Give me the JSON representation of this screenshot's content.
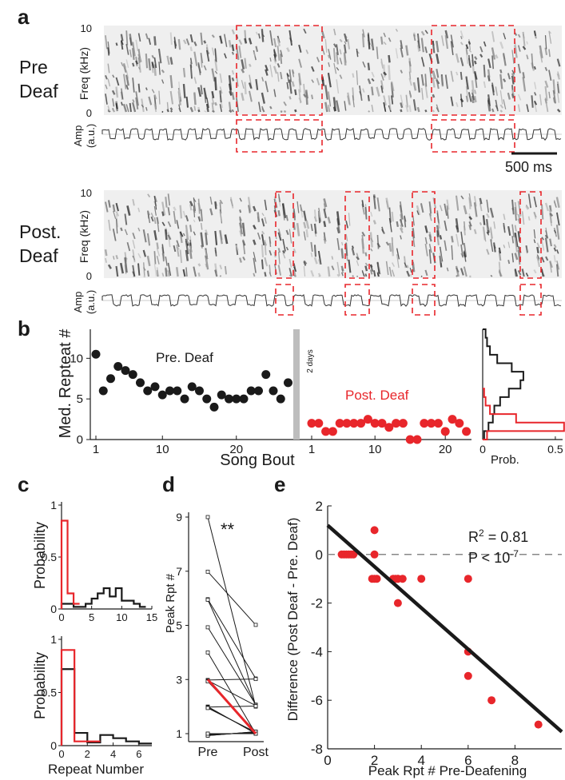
{
  "panel_a": {
    "label": "a",
    "pre": {
      "title_line1": "Pre",
      "title_line2": "Deaf"
    },
    "post": {
      "title_line1": "Post.",
      "title_line2": "Deaf"
    },
    "freq_label": "Freq (kHz)",
    "freq_top": "10",
    "freq_bottom": "0",
    "amp_label_line1": "Amp",
    "amp_label_line2": "(a.u.)",
    "scale_bar": "500 ms"
  },
  "panel_b": {
    "label": "b",
    "ylabel": "Med. Repteat #",
    "xlabel": "Song Bout",
    "gap_label": "2 days",
    "pre_label": "Pre. Deaf",
    "post_label": "Post. Deaf",
    "hist_xlabel": "Prob.",
    "hist_ticks": [
      "0",
      "0.5"
    ],
    "colors": {
      "pre": "#1a1a1a",
      "post": "#e8262b"
    }
  },
  "panel_c": {
    "label": "c",
    "ylabel_top": "Probability",
    "ylabel_bottom": "Probability",
    "xlabel": "Repeat Number"
  },
  "panel_d": {
    "label": "d",
    "ylabel": "Peak Rpt #",
    "significance": "**",
    "xticks": [
      "Pre",
      "Post"
    ]
  },
  "panel_e": {
    "label": "e",
    "ylabel": "Difference (Post Deaf - Pre. Deaf)",
    "xlabel": "Peak Rpt # Pre-Deafening",
    "r2_prefix": "R",
    "r2_sup": "2",
    "r2_value": " = 0.81",
    "p_prefix": "P < 10",
    "p_sup": "-7"
  },
  "chart_data": [
    {
      "type": "scatter",
      "panel": "b",
      "ylim": [
        0,
        12
      ],
      "yticks": [
        0,
        5,
        10
      ],
      "series": [
        {
          "name": "Pre. Deaf",
          "x": [
            1,
            2,
            3,
            4,
            5,
            6,
            7,
            8,
            9,
            10,
            11,
            12,
            13,
            14,
            15,
            16,
            17,
            18,
            19,
            20,
            21,
            22,
            23,
            24,
            25,
            26,
            27
          ],
          "y": [
            10.5,
            6,
            7.5,
            9,
            8.5,
            8,
            7,
            6,
            6.5,
            5.5,
            6,
            6,
            5,
            6.5,
            6,
            5,
            4,
            5.5,
            5,
            5,
            5,
            6,
            6,
            8,
            6,
            5,
            7
          ]
        },
        {
          "name": "Post. Deaf",
          "x": [
            1,
            2,
            3,
            4,
            5,
            6,
            7,
            8,
            9,
            10,
            11,
            12,
            13,
            14,
            15,
            16,
            17,
            18,
            19,
            20,
            21,
            22,
            23
          ],
          "y": [
            2,
            2,
            1,
            1,
            2,
            2,
            2,
            2,
            2.5,
            2,
            2,
            1.5,
            2,
            2,
            0,
            0,
            2,
            2,
            2,
            1,
            2.5,
            2,
            1
          ]
        }
      ],
      "xticks": [
        1,
        10,
        20
      ]
    },
    {
      "type": "histogram",
      "panel": "b-inset",
      "orientation": "horizontal",
      "xlim": [
        0,
        0.55
      ],
      "xticks": [
        0,
        0.5
      ],
      "series": [
        {
          "name": "Pre. Deaf",
          "bins": [
            0,
            1,
            2,
            3,
            4,
            5,
            6,
            7,
            8,
            9,
            10,
            11,
            12
          ],
          "values": [
            0.01,
            0.04,
            0.07,
            0.08,
            0.12,
            0.18,
            0.26,
            0.28,
            0.2,
            0.1,
            0.05,
            0.03,
            0.02
          ]
        },
        {
          "name": "Post. Deaf",
          "bins": [
            0,
            1,
            2,
            3,
            4,
            5
          ],
          "values": [
            0.03,
            0.56,
            0.23,
            0.05,
            0.02,
            0.01
          ]
        }
      ]
    },
    {
      "type": "histogram",
      "panel": "c-top",
      "xlim": [
        0,
        15
      ],
      "ylim": [
        0,
        1
      ],
      "xticks": [
        0,
        5,
        10,
        15
      ],
      "yticks": [
        0,
        0.5,
        1
      ],
      "series": [
        {
          "name": "Pre",
          "edges": [
            0,
            1,
            2,
            3,
            4,
            5,
            6,
            7,
            8,
            9,
            10,
            11,
            12,
            13,
            14
          ],
          "values": [
            0.05,
            0.05,
            0.02,
            0.02,
            0.05,
            0.1,
            0.15,
            0.2,
            0.12,
            0.2,
            0.08,
            0.08,
            0.05,
            0.02
          ]
        },
        {
          "name": "Post",
          "edges": [
            0,
            1,
            2,
            3
          ],
          "values": [
            0.85,
            0.15,
            0.05
          ]
        }
      ]
    },
    {
      "type": "histogram",
      "panel": "c-bottom",
      "xlim": [
        0,
        7
      ],
      "ylim": [
        0,
        1
      ],
      "xticks": [
        0,
        2,
        4,
        6
      ],
      "yticks": [
        0,
        0.5,
        1
      ],
      "series": [
        {
          "name": "Pre",
          "edges": [
            0,
            1,
            2,
            3,
            4,
            5,
            6,
            7
          ],
          "values": [
            0.72,
            0.12,
            0.03,
            0.1,
            0.07,
            0.04,
            0.02
          ]
        },
        {
          "name": "Post",
          "edges": [
            0,
            1,
            2,
            3
          ],
          "values": [
            0.9,
            0.04,
            0.04
          ]
        }
      ]
    },
    {
      "type": "line",
      "panel": "d",
      "ylim": [
        1,
        9
      ],
      "yticks": [
        1,
        3,
        5,
        7,
        9
      ],
      "pairs": [
        [
          9,
          2
        ],
        [
          7,
          5
        ],
        [
          6,
          3
        ],
        [
          6,
          2
        ],
        [
          5,
          2
        ],
        [
          4,
          1
        ],
        [
          3,
          3
        ],
        [
          3,
          2
        ],
        [
          3,
          1
        ],
        [
          3,
          1
        ],
        [
          2,
          1
        ],
        [
          2,
          2
        ],
        [
          2,
          1
        ],
        [
          2,
          1
        ],
        [
          1,
          1
        ],
        [
          1,
          1
        ],
        [
          1,
          1
        ],
        [
          1,
          1
        ],
        [
          1,
          1
        ],
        [
          1,
          1
        ],
        [
          1,
          1
        ]
      ],
      "highlight": {
        "pre": 3,
        "post": 1
      }
    },
    {
      "type": "scatter",
      "panel": "e",
      "xlim": [
        0,
        10
      ],
      "ylim": [
        -8,
        2
      ],
      "xticks": [
        0,
        2,
        4,
        6,
        8
      ],
      "yticks": [
        -8,
        -6,
        -4,
        -2,
        0,
        2
      ],
      "points": {
        "x": [
          0.6,
          0.7,
          0.8,
          0.9,
          1.0,
          1.1,
          2,
          2,
          1.9,
          2.1,
          2,
          3,
          3,
          2.8,
          3.2,
          2.9,
          4,
          6,
          6,
          6,
          7,
          9,
          3
        ],
        "y": [
          0,
          0,
          0,
          0,
          0,
          0,
          1,
          0,
          -1,
          -1,
          -1,
          -1,
          -1,
          -1,
          -1,
          -1,
          -1,
          -1,
          -4,
          -5,
          -6,
          -7,
          -2
        ]
      },
      "fit": {
        "x": [
          0,
          10
        ],
        "y": [
          1.2,
          -7.3
        ]
      },
      "zero_line": 0
    }
  ]
}
